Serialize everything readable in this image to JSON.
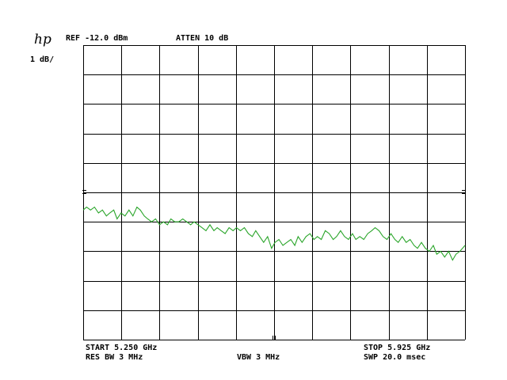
{
  "header": {
    "logo": "hp",
    "ref_level": "REF -12.0 dBm",
    "attenuation": "ATTEN 10 dB",
    "scale": "1 dB/"
  },
  "footer": {
    "start": "START 5.250 GHz",
    "stop": "STOP 5.925 GHz",
    "rbw": "RES BW 3 MHz",
    "vbw": "VBW 3 MHz",
    "sweep": "SWP 20.0 msec"
  },
  "colors": {
    "trace": "#2aa52a",
    "grid": "#000000",
    "background": "#ffffff"
  },
  "chart_data": {
    "type": "line",
    "x_unit": "GHz",
    "y_unit": "dBm",
    "xlim": [
      5.25,
      5.925
    ],
    "ylim": [
      -22.0,
      -12.0
    ],
    "divisions": {
      "x": 10,
      "y": 10
    },
    "grid": true,
    "series": [
      {
        "points": [
          [
            5.25,
            -17.6
          ],
          [
            5.256,
            -17.5
          ],
          [
            5.263,
            -17.6
          ],
          [
            5.27,
            -17.5
          ],
          [
            5.277,
            -17.7
          ],
          [
            5.284,
            -17.6
          ],
          [
            5.291,
            -17.8
          ],
          [
            5.297,
            -17.7
          ],
          [
            5.304,
            -17.6
          ],
          [
            5.31,
            -17.9
          ],
          [
            5.317,
            -17.7
          ],
          [
            5.324,
            -17.8
          ],
          [
            5.331,
            -17.6
          ],
          [
            5.338,
            -17.8
          ],
          [
            5.345,
            -17.5
          ],
          [
            5.351,
            -17.6
          ],
          [
            5.358,
            -17.8
          ],
          [
            5.364,
            -17.9
          ],
          [
            5.371,
            -18.0
          ],
          [
            5.378,
            -17.9
          ],
          [
            5.385,
            -18.1
          ],
          [
            5.392,
            -18.0
          ],
          [
            5.399,
            -18.1
          ],
          [
            5.405,
            -17.9
          ],
          [
            5.412,
            -18.0
          ],
          [
            5.419,
            -18.0
          ],
          [
            5.426,
            -17.9
          ],
          [
            5.433,
            -18.0
          ],
          [
            5.44,
            -18.1
          ],
          [
            5.446,
            -18.0
          ],
          [
            5.453,
            -18.1
          ],
          [
            5.46,
            -18.2
          ],
          [
            5.467,
            -18.3
          ],
          [
            5.474,
            -18.1
          ],
          [
            5.481,
            -18.3
          ],
          [
            5.487,
            -18.2
          ],
          [
            5.494,
            -18.3
          ],
          [
            5.501,
            -18.4
          ],
          [
            5.508,
            -18.2
          ],
          [
            5.515,
            -18.3
          ],
          [
            5.521,
            -18.2
          ],
          [
            5.528,
            -18.3
          ],
          [
            5.535,
            -18.2
          ],
          [
            5.542,
            -18.4
          ],
          [
            5.549,
            -18.5
          ],
          [
            5.555,
            -18.3
          ],
          [
            5.562,
            -18.5
          ],
          [
            5.569,
            -18.7
          ],
          [
            5.576,
            -18.5
          ],
          [
            5.583,
            -18.9
          ],
          [
            5.589,
            -18.7
          ],
          [
            5.596,
            -18.6
          ],
          [
            5.603,
            -18.8
          ],
          [
            5.61,
            -18.7
          ],
          [
            5.617,
            -18.6
          ],
          [
            5.624,
            -18.8
          ],
          [
            5.63,
            -18.5
          ],
          [
            5.637,
            -18.7
          ],
          [
            5.644,
            -18.5
          ],
          [
            5.651,
            -18.4
          ],
          [
            5.658,
            -18.6
          ],
          [
            5.664,
            -18.5
          ],
          [
            5.671,
            -18.6
          ],
          [
            5.678,
            -18.3
          ],
          [
            5.685,
            -18.4
          ],
          [
            5.692,
            -18.6
          ],
          [
            5.698,
            -18.5
          ],
          [
            5.705,
            -18.3
          ],
          [
            5.712,
            -18.5
          ],
          [
            5.719,
            -18.6
          ],
          [
            5.726,
            -18.4
          ],
          [
            5.732,
            -18.6
          ],
          [
            5.739,
            -18.5
          ],
          [
            5.746,
            -18.6
          ],
          [
            5.753,
            -18.4
          ],
          [
            5.76,
            -18.3
          ],
          [
            5.766,
            -18.2
          ],
          [
            5.773,
            -18.3
          ],
          [
            5.78,
            -18.5
          ],
          [
            5.787,
            -18.6
          ],
          [
            5.794,
            -18.4
          ],
          [
            5.801,
            -18.6
          ],
          [
            5.807,
            -18.7
          ],
          [
            5.814,
            -18.5
          ],
          [
            5.821,
            -18.7
          ],
          [
            5.828,
            -18.6
          ],
          [
            5.835,
            -18.8
          ],
          [
            5.841,
            -18.9
          ],
          [
            5.848,
            -18.7
          ],
          [
            5.855,
            -18.9
          ],
          [
            5.862,
            -19.0
          ],
          [
            5.869,
            -18.8
          ],
          [
            5.875,
            -19.1
          ],
          [
            5.882,
            -19.0
          ],
          [
            5.889,
            -19.2
          ],
          [
            5.896,
            -19.0
          ],
          [
            5.903,
            -19.3
          ],
          [
            5.909,
            -19.1
          ],
          [
            5.916,
            -19.0
          ],
          [
            5.925,
            -18.8
          ]
        ]
      }
    ]
  }
}
